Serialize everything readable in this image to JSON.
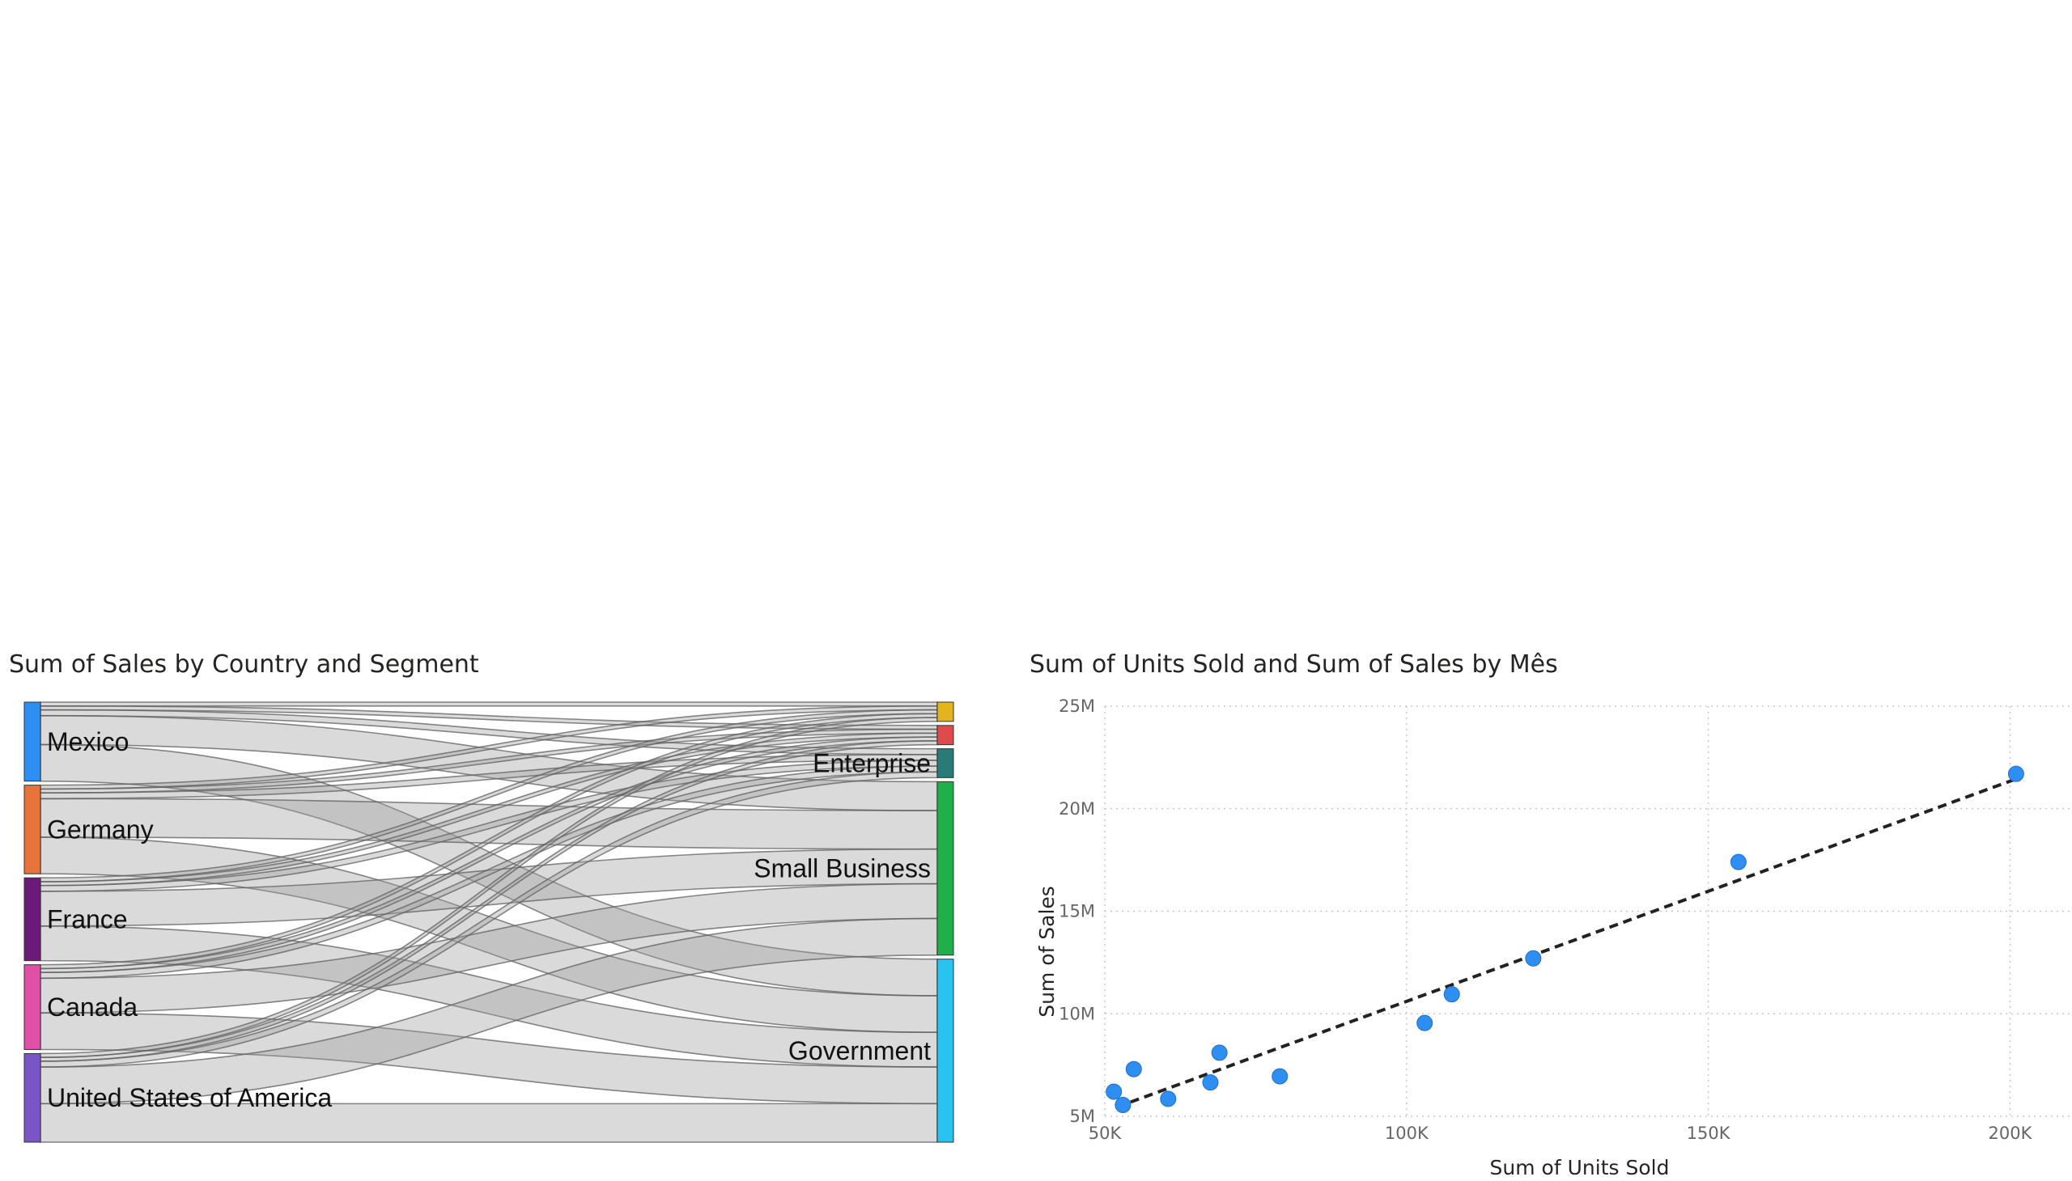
{
  "charts": {
    "sankey": {
      "title": "Sum of Sales by Country and Segment"
    },
    "scatter": {
      "title": "Sum of Units Sold and Sum of Sales by Mês"
    }
  },
  "chart_data": [
    {
      "type": "sankey",
      "title": "Sum of Sales by Country and Segment",
      "sources": [
        {
          "name": "Mexico",
          "color": "#2f8ef2"
        },
        {
          "name": "Germany",
          "color": "#e8743b"
        },
        {
          "name": "France",
          "color": "#6b1a7a"
        },
        {
          "name": "Canada",
          "color": "#e04fa8"
        },
        {
          "name": "United States of America",
          "color": "#7a55c7"
        }
      ],
      "targets": [
        {
          "name": "",
          "color": "#e2b41e"
        },
        {
          "name": "",
          "color": "#de4b4b"
        },
        {
          "name": "Enterprise",
          "color": "#2a7a7a"
        },
        {
          "name": "Small Business",
          "color": "#1fb04b"
        },
        {
          "name": "Government",
          "color": "#29c3f0"
        }
      ],
      "flows": [
        {
          "source": "Mexico",
          "target": 0,
          "value": 0.2
        },
        {
          "source": "Mexico",
          "target": 1,
          "value": 0.2
        },
        {
          "source": "Mexico",
          "target": 2,
          "value": 0.3
        },
        {
          "source": "Mexico",
          "target": 3,
          "value": 1.5
        },
        {
          "source": "Mexico",
          "target": 4,
          "value": 1.9
        },
        {
          "source": "Germany",
          "target": 0,
          "value": 0.2
        },
        {
          "source": "Germany",
          "target": 1,
          "value": 0.2
        },
        {
          "source": "Germany",
          "target": 2,
          "value": 0.3
        },
        {
          "source": "Germany",
          "target": 3,
          "value": 2.0
        },
        {
          "source": "Germany",
          "target": 4,
          "value": 1.9
        },
        {
          "source": "France",
          "target": 0,
          "value": 0.2
        },
        {
          "source": "France",
          "target": 1,
          "value": 0.2
        },
        {
          "source": "France",
          "target": 2,
          "value": 0.3
        },
        {
          "source": "France",
          "target": 3,
          "value": 1.8
        },
        {
          "source": "France",
          "target": 4,
          "value": 1.8
        },
        {
          "source": "Canada",
          "target": 0,
          "value": 0.2
        },
        {
          "source": "Canada",
          "target": 1,
          "value": 0.2
        },
        {
          "source": "Canada",
          "target": 2,
          "value": 0.3
        },
        {
          "source": "Canada",
          "target": 3,
          "value": 1.8
        },
        {
          "source": "Canada",
          "target": 4,
          "value": 1.9
        },
        {
          "source": "United States of America",
          "target": 0,
          "value": 0.2
        },
        {
          "source": "United States of America",
          "target": 1,
          "value": 0.2
        },
        {
          "source": "United States of America",
          "target": 2,
          "value": 0.3
        },
        {
          "source": "United States of America",
          "target": 3,
          "value": 1.9
        },
        {
          "source": "United States of America",
          "target": 4,
          "value": 2.0
        }
      ]
    },
    {
      "type": "scatter",
      "title": "Sum of Units Sold and Sum of Sales by Mês",
      "xlabel": "Sum of Units Sold",
      "ylabel": "Sum of Sales",
      "xlim": [
        50000,
        210000
      ],
      "ylim": [
        5000000,
        25000000
      ],
      "xticks": [
        {
          "v": 50000,
          "label": "50K"
        },
        {
          "v": 100000,
          "label": "100K"
        },
        {
          "v": 150000,
          "label": "150K"
        },
        {
          "v": 200000,
          "label": "200K"
        }
      ],
      "yticks": [
        {
          "v": 5000000,
          "label": "5M"
        },
        {
          "v": 10000000,
          "label": "10M"
        },
        {
          "v": 15000000,
          "label": "15M"
        },
        {
          "v": 20000000,
          "label": "20M"
        },
        {
          "v": 25000000,
          "label": "25M"
        }
      ],
      "grid": true,
      "point_color": "#2f8ef2",
      "points": [
        {
          "x": 51500,
          "y": 6200000
        },
        {
          "x": 53000,
          "y": 5550000
        },
        {
          "x": 54800,
          "y": 7300000
        },
        {
          "x": 60500,
          "y": 5850000
        },
        {
          "x": 67500,
          "y": 6650000
        },
        {
          "x": 69000,
          "y": 8100000
        },
        {
          "x": 79000,
          "y": 6950000
        },
        {
          "x": 103000,
          "y": 9550000
        },
        {
          "x": 107500,
          "y": 10950000
        },
        {
          "x": 121000,
          "y": 12700000
        },
        {
          "x": 155000,
          "y": 17400000
        },
        {
          "x": 201000,
          "y": 21700000
        }
      ],
      "trendline": {
        "style": "dashed",
        "color": "#222222",
        "from": {
          "x": 52000,
          "y": 5450000
        },
        "to": {
          "x": 201000,
          "y": 21450000
        }
      }
    }
  ]
}
